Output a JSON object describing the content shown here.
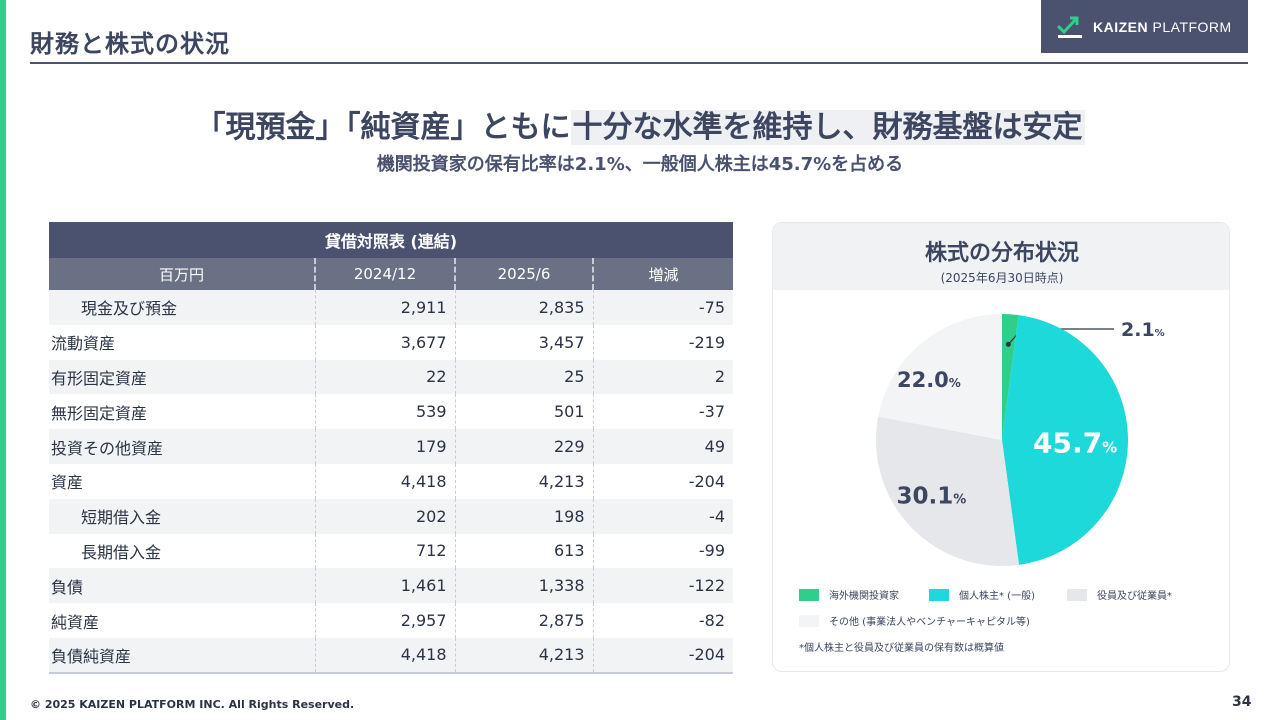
{
  "header": {
    "title": "財務と株式の状況",
    "logo_text_bold": "KAIZEN",
    "logo_text": "PLATFORM"
  },
  "headline": {
    "part1": "「現預金」「純資産」ともに",
    "part2": "十分な水準を維持し、財務基盤は安定",
    "sub": "機関投資家の保有比率は2.1%、一般個人株主は45.7%を占める"
  },
  "balance_sheet": {
    "title": "貸借対照表 (連結)",
    "columns": [
      "百万円",
      "2024/12",
      "2025/6",
      "増減"
    ],
    "rows": [
      {
        "label": "現金及び預金",
        "a": "2,911",
        "b": "2,835",
        "c": "-75",
        "indent": true
      },
      {
        "label": "流動資産",
        "a": "3,677",
        "b": "3,457",
        "c": "-219",
        "indent": false
      },
      {
        "label": "有形固定資産",
        "a": "22",
        "b": "25",
        "c": "2",
        "indent": false
      },
      {
        "label": "無形固定資産",
        "a": "539",
        "b": "501",
        "c": "-37",
        "indent": false
      },
      {
        "label": "投資その他資産",
        "a": "179",
        "b": "229",
        "c": "49",
        "indent": false
      },
      {
        "label": "資産",
        "a": "4,418",
        "b": "4,213",
        "c": "-204",
        "indent": false
      },
      {
        "label": "短期借入金",
        "a": "202",
        "b": "198",
        "c": "-4",
        "indent": true
      },
      {
        "label": "長期借入金",
        "a": "712",
        "b": "613",
        "c": "-99",
        "indent": true
      },
      {
        "label": "負債",
        "a": "1,461",
        "b": "1,338",
        "c": "-122",
        "indent": false
      },
      {
        "label": "純資産",
        "a": "2,957",
        "b": "2,875",
        "c": "-82",
        "indent": false
      },
      {
        "label": "負債純資産",
        "a": "4,418",
        "b": "4,213",
        "c": "-204",
        "indent": false
      }
    ]
  },
  "chart_data": {
    "type": "pie",
    "title": "株式の分布状況",
    "subtitle": "(2025年6月30日時点)",
    "unit": "%",
    "slices": [
      {
        "name": "海外機関投資家",
        "value": 2.1,
        "color": "#2ecf8a"
      },
      {
        "name": "個人株主* (一般)",
        "value": 45.7,
        "color": "#1dd9d9"
      },
      {
        "name": "役員及び従業員*",
        "value": 30.1,
        "color": "#e6e7ea"
      },
      {
        "name": "その他 (事業法人やベンチャーキャピタル等)",
        "value": 22.0,
        "color": "#f3f4f6"
      }
    ],
    "footnote": "*個人株主と役員及び従業員の保有数は概算値"
  },
  "footer": {
    "copyright": "© 2025 KAIZEN PLATFORM INC. All Rights Reserved.",
    "page": "34"
  }
}
